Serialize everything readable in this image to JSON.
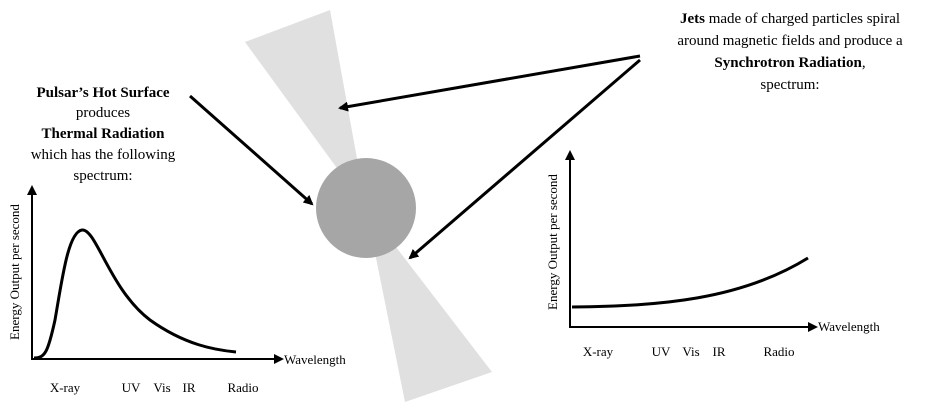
{
  "left_text": {
    "lines": [
      "Pulsar’s Hot Surface",
      "produces",
      "Thermal Radiation",
      "which has the following",
      "spectrum:"
    ]
  },
  "right_text": {
    "line1_bold": "Jets",
    "line1_rest": " made of charged particles spiral",
    "line2": "around magnetic fields and produce a",
    "line3_bold": "Synchrotron Radiation",
    "line3_rest": ",",
    "line4": "spectrum:"
  },
  "left_chart": {
    "y_label": "Energy Output per second",
    "x_label": "Wavelength",
    "x_ticks": [
      "X-ray",
      "UV",
      "Vis",
      "IR",
      "Radio"
    ]
  },
  "right_chart": {
    "y_label": "Energy Output per second",
    "x_label": "Wavelength",
    "x_ticks": [
      "X-ray",
      "UV",
      "Vis",
      "IR",
      "Radio"
    ]
  }
}
